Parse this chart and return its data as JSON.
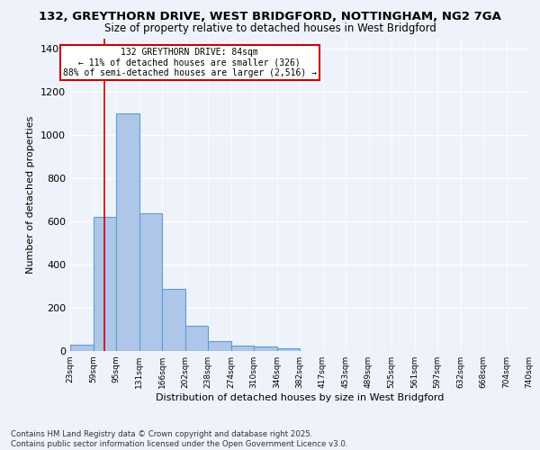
{
  "title1": "132, GREYTHORN DRIVE, WEST BRIDGFORD, NOTTINGHAM, NG2 7GA",
  "title2": "Size of property relative to detached houses in West Bridgford",
  "xlabel": "Distribution of detached houses by size in West Bridgford",
  "ylabel": "Number of detached properties",
  "bar_color": "#aec6e8",
  "bar_edge_color": "#5a9fd4",
  "bg_color": "#eef3fb",
  "grid_color": "#ffffff",
  "annotation_line_color": "#cc0000",
  "bins": [
    "23sqm",
    "59sqm",
    "95sqm",
    "131sqm",
    "166sqm",
    "202sqm",
    "238sqm",
    "274sqm",
    "310sqm",
    "346sqm",
    "382sqm",
    "417sqm",
    "453sqm",
    "489sqm",
    "525sqm",
    "561sqm",
    "597sqm",
    "632sqm",
    "668sqm",
    "704sqm",
    "740sqm"
  ],
  "values": [
    28,
    620,
    1100,
    638,
    290,
    115,
    47,
    25,
    20,
    12,
    0,
    0,
    0,
    0,
    0,
    0,
    0,
    0,
    0,
    0
  ],
  "annotation_text_line1": "132 GREYTHORN DRIVE: 84sqm",
  "annotation_text_line2": "← 11% of detached houses are smaller (326)",
  "annotation_text_line3": "88% of semi-detached houses are larger (2,516) →",
  "footer_line1": "Contains HM Land Registry data © Crown copyright and database right 2025.",
  "footer_line2": "Contains public sector information licensed under the Open Government Licence v3.0.",
  "ylim": [
    0,
    1450
  ],
  "yticks": [
    0,
    200,
    400,
    600,
    800,
    1000,
    1200,
    1400
  ]
}
